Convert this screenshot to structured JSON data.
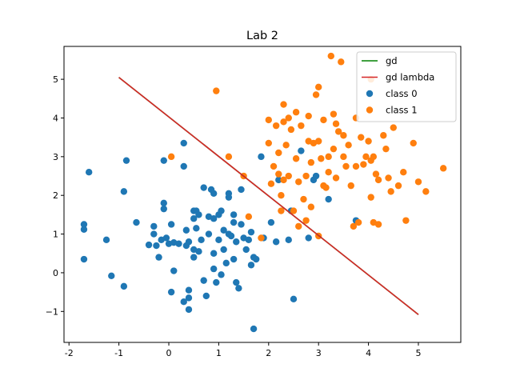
{
  "chart_data": {
    "type": "scatter",
    "title": "Lab 2",
    "xlabel": "",
    "ylabel": "",
    "xlim": [
      -2.1,
      5.85
    ],
    "ylim": [
      -1.8,
      5.85
    ],
    "xticks": [
      -2,
      -1,
      0,
      1,
      2,
      3,
      4,
      5
    ],
    "yticks": [
      -1,
      0,
      1,
      2,
      3,
      4,
      5
    ],
    "grid": false,
    "legend_position": "top-right",
    "lines": [
      {
        "name": "gd",
        "color": "#008000",
        "x": [
          -1.0,
          5.0
        ],
        "y": [
          5.05,
          -1.08
        ]
      },
      {
        "name": "gd lambda",
        "color": "#d62728",
        "x": [
          -1.0,
          5.0
        ],
        "y": [
          5.05,
          -1.08
        ]
      }
    ],
    "series": [
      {
        "name": "class 0",
        "color": "#1f77b4",
        "points": [
          [
            -1.6,
            2.6
          ],
          [
            -0.85,
            2.9
          ],
          [
            -0.9,
            2.1
          ],
          [
            -0.1,
            2.9
          ],
          [
            0.3,
            3.35
          ],
          [
            0.3,
            2.75
          ],
          [
            -1.7,
            1.25
          ],
          [
            -1.7,
            1.12
          ],
          [
            -1.7,
            0.35
          ],
          [
            -1.25,
            0.85
          ],
          [
            -1.15,
            -0.08
          ],
          [
            -0.9,
            -0.35
          ],
          [
            -0.65,
            1.3
          ],
          [
            -0.4,
            0.72
          ],
          [
            -0.3,
            1.2
          ],
          [
            -0.3,
            1.0
          ],
          [
            -0.25,
            0.7
          ],
          [
            -0.2,
            0.4
          ],
          [
            -0.15,
            0.85
          ],
          [
            -0.1,
            1.8
          ],
          [
            -0.1,
            1.65
          ],
          [
            -0.05,
            0.9
          ],
          [
            0.0,
            0.75
          ],
          [
            0.05,
            1.25
          ],
          [
            0.05,
            -0.5
          ],
          [
            0.1,
            0.05
          ],
          [
            0.1,
            0.78
          ],
          [
            0.2,
            0.75
          ],
          [
            0.3,
            -0.75
          ],
          [
            0.35,
            1.1
          ],
          [
            0.35,
            0.7
          ],
          [
            0.4,
            0.8
          ],
          [
            0.4,
            -0.45
          ],
          [
            0.4,
            -0.65
          ],
          [
            0.4,
            -0.95
          ],
          [
            0.5,
            1.6
          ],
          [
            0.5,
            1.4
          ],
          [
            0.5,
            0.6
          ],
          [
            0.5,
            0.4
          ],
          [
            0.55,
            1.15
          ],
          [
            0.55,
            1.6
          ],
          [
            0.6,
            1.5
          ],
          [
            0.6,
            0.55
          ],
          [
            0.65,
            0.85
          ],
          [
            0.7,
            2.2
          ],
          [
            0.7,
            -0.2
          ],
          [
            0.75,
            -0.6
          ],
          [
            0.8,
            1.45
          ],
          [
            0.8,
            1.0
          ],
          [
            0.85,
            2.15
          ],
          [
            0.9,
            2.05
          ],
          [
            0.9,
            1.4
          ],
          [
            0.9,
            0.5
          ],
          [
            0.9,
            0.1
          ],
          [
            0.95,
            -0.25
          ],
          [
            1.0,
            1.5
          ],
          [
            1.0,
            0.85
          ],
          [
            1.05,
            -0.05
          ],
          [
            1.05,
            1.6
          ],
          [
            1.1,
            0.6
          ],
          [
            1.1,
            1.1
          ],
          [
            1.15,
            0.25
          ],
          [
            1.2,
            2.05
          ],
          [
            1.2,
            1.95
          ],
          [
            1.2,
            1.0
          ],
          [
            1.25,
            0.95
          ],
          [
            1.3,
            1.5
          ],
          [
            1.3,
            1.3
          ],
          [
            1.3,
            0.35
          ],
          [
            1.35,
            0.8
          ],
          [
            1.35,
            -0.25
          ],
          [
            1.4,
            -0.4
          ],
          [
            1.45,
            2.15
          ],
          [
            1.45,
            1.25
          ],
          [
            1.5,
            0.9
          ],
          [
            1.55,
            0.6
          ],
          [
            1.6,
            0.85
          ],
          [
            1.65,
            1.05
          ],
          [
            1.65,
            0.2
          ],
          [
            1.7,
            0.4
          ],
          [
            1.75,
            0.35
          ],
          [
            1.7,
            -1.45
          ],
          [
            1.85,
            3.0
          ],
          [
            1.9,
            0.9
          ],
          [
            2.05,
            1.3
          ],
          [
            2.15,
            0.8
          ],
          [
            2.2,
            2.4
          ],
          [
            2.4,
            0.85
          ],
          [
            2.45,
            1.6
          ],
          [
            2.5,
            -0.68
          ],
          [
            2.65,
            3.15
          ],
          [
            2.8,
            0.9
          ],
          [
            2.9,
            2.4
          ],
          [
            2.95,
            2.5
          ],
          [
            3.2,
            1.9
          ],
          [
            3.75,
            1.35
          ]
        ]
      },
      {
        "name": "class 1",
        "color": "#ff7f0e",
        "points": [
          [
            0.05,
            3.0
          ],
          [
            0.95,
            4.7
          ],
          [
            1.2,
            3.0
          ],
          [
            1.5,
            2.5
          ],
          [
            1.6,
            1.45
          ],
          [
            1.85,
            0.9
          ],
          [
            2.0,
            3.35
          ],
          [
            2.0,
            3.95
          ],
          [
            2.05,
            2.3
          ],
          [
            2.1,
            2.75
          ],
          [
            2.15,
            3.8
          ],
          [
            2.2,
            3.1
          ],
          [
            2.2,
            2.55
          ],
          [
            2.25,
            1.6
          ],
          [
            2.25,
            2.0
          ],
          [
            2.3,
            2.4
          ],
          [
            2.3,
            4.35
          ],
          [
            2.3,
            3.9
          ],
          [
            2.35,
            3.3
          ],
          [
            2.4,
            4.0
          ],
          [
            2.4,
            2.5
          ],
          [
            2.45,
            3.7
          ],
          [
            2.5,
            1.6
          ],
          [
            2.55,
            4.15
          ],
          [
            2.55,
            2.95
          ],
          [
            2.6,
            2.35
          ],
          [
            2.6,
            1.2
          ],
          [
            2.65,
            3.8
          ],
          [
            2.7,
            1.9
          ],
          [
            2.75,
            2.5
          ],
          [
            2.75,
            1.35
          ],
          [
            2.8,
            3.4
          ],
          [
            2.8,
            4.05
          ],
          [
            2.85,
            2.85
          ],
          [
            2.85,
            1.7
          ],
          [
            2.9,
            3.35
          ],
          [
            2.95,
            4.6
          ],
          [
            3.0,
            4.8
          ],
          [
            3.0,
            3.4
          ],
          [
            3.05,
            2.95
          ],
          [
            3.1,
            3.95
          ],
          [
            3.1,
            2.25
          ],
          [
            3.15,
            2.2
          ],
          [
            3.2,
            2.6
          ],
          [
            3.2,
            3.0
          ],
          [
            3.25,
            5.6
          ],
          [
            3.3,
            4.1
          ],
          [
            3.3,
            3.2
          ],
          [
            3.35,
            3.85
          ],
          [
            3.35,
            2.45
          ],
          [
            3.4,
            3.65
          ],
          [
            3.45,
            5.45
          ],
          [
            3.5,
            3.0
          ],
          [
            3.5,
            3.55
          ],
          [
            3.55,
            2.75
          ],
          [
            3.6,
            3.3
          ],
          [
            3.65,
            2.25
          ],
          [
            3.7,
            1.2
          ],
          [
            3.75,
            4.0
          ],
          [
            3.8,
            1.3
          ],
          [
            3.85,
            3.5
          ],
          [
            3.9,
            2.8
          ],
          [
            3.95,
            3.0
          ],
          [
            4.0,
            3.4
          ],
          [
            4.05,
            2.9
          ],
          [
            4.1,
            1.3
          ],
          [
            4.1,
            3.0
          ],
          [
            4.15,
            2.55
          ],
          [
            4.2,
            2.4
          ],
          [
            4.2,
            1.25
          ],
          [
            4.3,
            3.55
          ],
          [
            4.35,
            3.2
          ],
          [
            4.4,
            2.45
          ],
          [
            4.45,
            2.1
          ],
          [
            4.5,
            3.75
          ],
          [
            4.6,
            2.25
          ],
          [
            4.7,
            2.6
          ],
          [
            4.75,
            1.35
          ],
          [
            4.9,
            3.35
          ],
          [
            5.0,
            2.35
          ],
          [
            5.15,
            2.1
          ],
          [
            5.5,
            2.7
          ],
          [
            4.05,
            1.95
          ],
          [
            3.0,
            0.95
          ],
          [
            4.05,
            5.0
          ],
          [
            3.75,
            2.75
          ]
        ]
      }
    ]
  }
}
